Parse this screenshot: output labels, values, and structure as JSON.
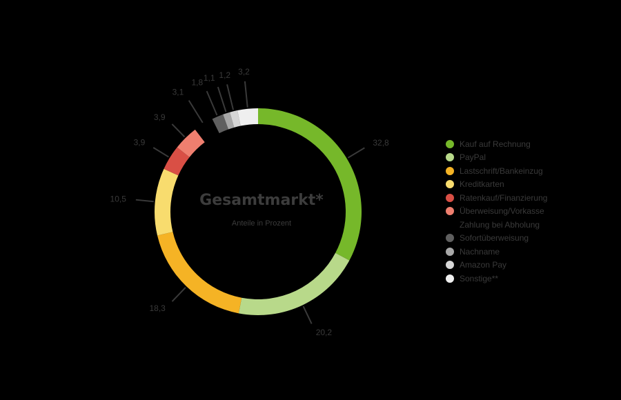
{
  "chart_data": {
    "type": "pie",
    "subtype": "donut",
    "title": "Gesamtmarkt*",
    "subtitle": "Anteile in Prozent",
    "unit": "%",
    "decimal_separator": ",",
    "start_angle": "12 o'clock, clockwise",
    "legend_position": "right",
    "categories": [
      "Kauf auf Rechnung",
      "PayPal",
      "Lastschrift/Bankeinzug",
      "Kreditkarten",
      "Ratenkauf/Finanzierung",
      "Überweisung/Vorkasse",
      "Zahlung bei Abholung",
      "Sofortüberweisung",
      "Nachname",
      "Amazon Pay",
      "Sonstige**"
    ],
    "values": [
      32.8,
      20.2,
      18.3,
      10.5,
      3.9,
      3.9,
      3.1,
      1.8,
      1.1,
      1.2,
      3.2
    ],
    "value_labels": [
      "32,8",
      "20,2",
      "18,3",
      "10,5",
      "3,9",
      "3,9",
      "3,1",
      "1,8",
      "1,1",
      "1,2",
      "3,2"
    ],
    "colors": [
      "#76b82a",
      "#b8d98a",
      "#f5b325",
      "#f8dc6e",
      "#d94f45",
      "#ef7f6f",
      "#000000",
      "#5f5f5f",
      "#a8a8a8",
      "#d6d6d6",
      "#efefef"
    ]
  },
  "center": {
    "title": "Gesamtmarkt*",
    "subtitle": "Anteile in Prozent"
  },
  "legend": {
    "items": [
      {
        "label": "Kauf auf Rechnung",
        "color": "#76b82a"
      },
      {
        "label": "PayPal",
        "color": "#b8d98a"
      },
      {
        "label": "Lastschrift/Bankeinzug",
        "color": "#f5b325"
      },
      {
        "label": "Kreditkarten",
        "color": "#f8dc6e"
      },
      {
        "label": "Ratenkauf/Finanzierung",
        "color": "#d94f45"
      },
      {
        "label": "Überweisung/Vorkasse",
        "color": "#ef7f6f"
      },
      {
        "label": "Zahlung bei Abholung",
        "color": "#000000"
      },
      {
        "label": "Sofortüberweisung",
        "color": "#5f5f5f"
      },
      {
        "label": "Nachname",
        "color": "#a8a8a8"
      },
      {
        "label": "Amazon Pay",
        "color": "#d6d6d6"
      },
      {
        "label": "Sonstige**",
        "color": "#efefef"
      }
    ]
  }
}
